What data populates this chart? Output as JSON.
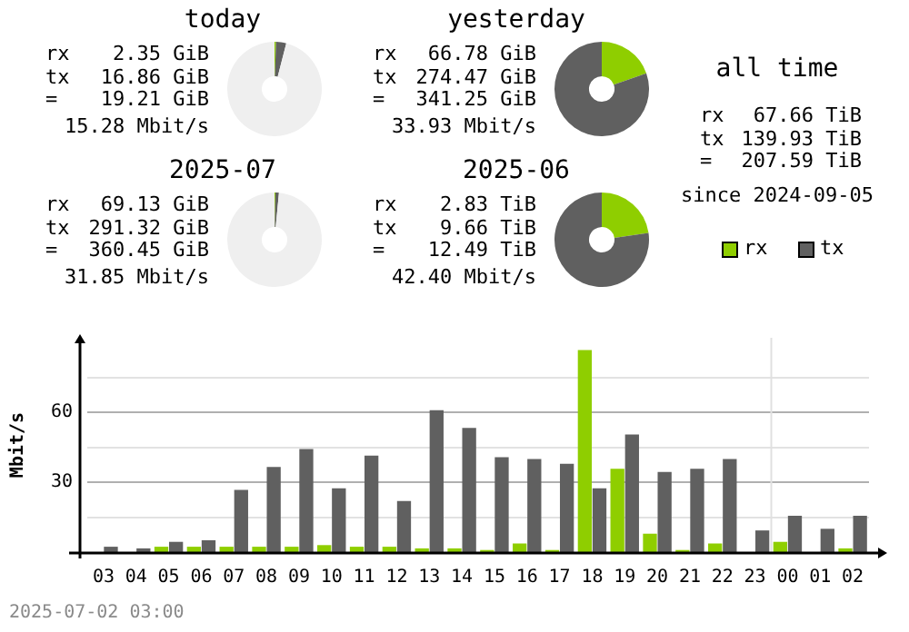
{
  "chart_data": [
    {
      "type": "donut",
      "title": "today",
      "categories": [
        null,
        null,
        null
      ],
      "values": [
        0.5,
        3.5,
        96
      ],
      "colors": [
        "#8fce00",
        "#606060",
        "#efefef"
      ],
      "annotations": [
        "rx",
        "2.35 GiB",
        "tx",
        "16.86 GiB",
        "=",
        "19.21 GiB",
        "15.28 Mbit/s"
      ]
    },
    {
      "type": "donut",
      "title": "yesterday",
      "categories": [
        null,
        null
      ],
      "values": [
        19.6,
        80.4
      ],
      "colors": [
        "#8fce00",
        "#606060"
      ],
      "annotations": [
        "rx",
        "66.78 GiB",
        "tx",
        "274.47 GiB",
        "=",
        "341.25 GiB",
        "33.93 Mbit/s"
      ]
    },
    {
      "type": "other",
      "title": "all time",
      "annotations": [
        "rx",
        "67.66 TiB",
        "tx",
        "139.93 TiB",
        "=",
        "207.59 TiB",
        "since 2024-09-05"
      ]
    },
    {
      "type": "donut",
      "title": "2025-07",
      "categories": [
        null,
        null,
        null
      ],
      "values": [
        0.3,
        1.2,
        98.5
      ],
      "colors": [
        "#8fce00",
        "#606060",
        "#efefef"
      ],
      "annotations": [
        "rx",
        "69.13 GiB",
        "tx",
        "291.32 GiB",
        "=",
        "360.45 GiB",
        "31.85 Mbit/s"
      ]
    },
    {
      "type": "donut",
      "title": "2025-06",
      "categories": [
        null,
        null
      ],
      "values": [
        22.7,
        77.3
      ],
      "colors": [
        "#8fce00",
        "#606060"
      ],
      "annotations": [
        "rx",
        "2.83 TiB",
        "tx",
        "9.66 TiB",
        "=",
        "12.49 TiB",
        "42.40 Mbit/s"
      ]
    },
    {
      "type": "bar",
      "ylabel": "Mbit/s",
      "categories": [
        "03",
        "04",
        "05",
        "06",
        "07",
        "08",
        "09",
        "10",
        "11",
        "12",
        "13",
        "14",
        "15",
        "16",
        "17",
        "18",
        "19",
        "20",
        "21",
        "22",
        "23",
        "00",
        "01",
        "02"
      ],
      "series": [
        {
          "name": "rx",
          "color": "#8fce00",
          "values": [
            0,
            0,
            2.3,
            2.3,
            2.3,
            2.3,
            2.3,
            3.0,
            2.3,
            2.3,
            1.6,
            1.6,
            0.9,
            3.7,
            0.9,
            86.7,
            35.8,
            7.9,
            0.9,
            3.7,
            0,
            4.4,
            0,
            1.6
          ]
        },
        {
          "name": "tx",
          "color": "#606060",
          "values": [
            2.3,
            1.6,
            4.4,
            5.1,
            26.7,
            36.5,
            44.2,
            27.4,
            41.4,
            21.9,
            60.9,
            53.3,
            40.7,
            40.0,
            37.9,
            27.4,
            50.5,
            34.4,
            35.8,
            40.0,
            9.3,
            15.6,
            10.0,
            15.6
          ]
        }
      ],
      "ylim": [
        0,
        92
      ],
      "yticks": [
        {
          "value": 15,
          "label": null
        },
        30,
        {
          "value": 45,
          "label": null
        },
        60,
        {
          "value": 75,
          "label": null
        }
      ],
      "grid": "y",
      "legend": "top right",
      "ref_lines": [
        {
          "axis": "x",
          "value": "00",
          "color": "#e0e0e0"
        }
      ],
      "annotations": [
        "2025-07-02 03:00"
      ]
    }
  ]
}
